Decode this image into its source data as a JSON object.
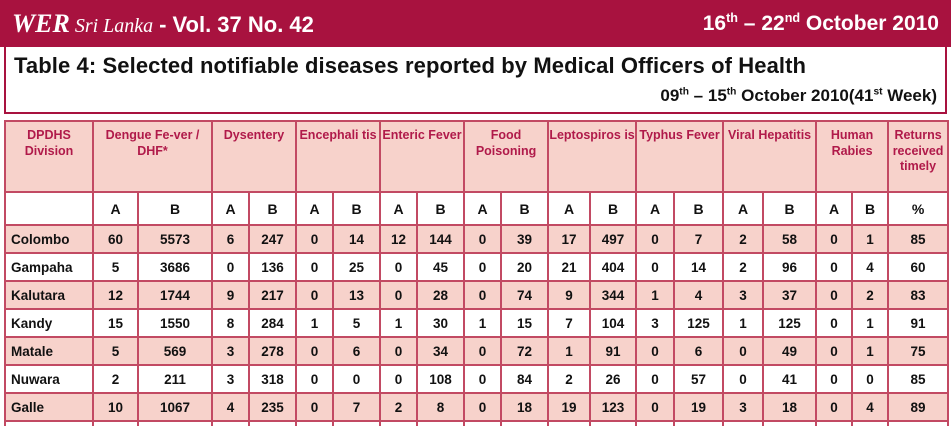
{
  "banner": {
    "wer": "WER",
    "country": "Sri Lanka",
    "separator": "-",
    "volume": "Vol. 37 No. 42",
    "date_start_day": "16",
    "date_start_sup": "th",
    "date_dash": "–",
    "date_end_day": "22",
    "date_end_sup": "nd",
    "date_month_year": "October  2010",
    "background_color": "#a8123f"
  },
  "title": {
    "text": "Table 4:  Selected notifiable diseases reported by Medical Officers of Health",
    "week_start_day": "09",
    "week_start_sup": "th",
    "week_dash": "–",
    "week_end_day": "15",
    "week_end_sup": "th",
    "week_month_year": "October  2010(41",
    "week_sup": "st",
    "week_suffix": " Week)"
  },
  "table": {
    "header_color": "#f7d2cb",
    "header_text_color": "#b01a4a",
    "border_color": "#c24a63",
    "columns": {
      "division": "DPDHS Division",
      "dengue": "Dengue Fe-ver / DHF*",
      "dysentery": "Dysentery",
      "encephalitis": "Encephali tis",
      "enteric": "Enteric Fever",
      "food": "Food Poisoning",
      "lepto": "Leptospiros is",
      "typhus": "Typhus Fever",
      "hepatitis": "Viral Hepatitis",
      "rabies": "Human Rabies",
      "returns": "Returns received timely"
    },
    "sub": {
      "a": "A",
      "b": "B",
      "pct": "%"
    },
    "rows": [
      [
        "Colombo",
        "60",
        "5573",
        "6",
        "247",
        "0",
        "14",
        "12",
        "144",
        "0",
        "39",
        "17",
        "497",
        "0",
        "7",
        "2",
        "58",
        "0",
        "1",
        "85"
      ],
      [
        "Gampaha",
        "5",
        "3686",
        "0",
        "136",
        "0",
        "25",
        "0",
        "45",
        "0",
        "20",
        "21",
        "404",
        "0",
        "14",
        "2",
        "96",
        "0",
        "4",
        "60"
      ],
      [
        "Kalutara",
        "12",
        "1744",
        "9",
        "217",
        "0",
        "13",
        "0",
        "28",
        "0",
        "74",
        "9",
        "344",
        "1",
        "4",
        "3",
        "37",
        "0",
        "2",
        "83"
      ],
      [
        "Kandy",
        "15",
        "1550",
        "8",
        "284",
        "1",
        "5",
        "1",
        "30",
        "1",
        "15",
        "7",
        "104",
        "3",
        "125",
        "1",
        "125",
        "0",
        "1",
        "91"
      ],
      [
        "Matale",
        "5",
        "569",
        "3",
        "278",
        "0",
        "6",
        "0",
        "34",
        "0",
        "72",
        "1",
        "91",
        "0",
        "6",
        "0",
        "49",
        "0",
        "1",
        "75"
      ],
      [
        "Nuwara",
        "2",
        "211",
        "3",
        "318",
        "0",
        "0",
        "0",
        "108",
        "0",
        "84",
        "2",
        "26",
        "0",
        "57",
        "0",
        "41",
        "0",
        "0",
        "85"
      ],
      [
        "Galle",
        "10",
        "1067",
        "4",
        "235",
        "0",
        "7",
        "2",
        "8",
        "0",
        "18",
        "19",
        "123",
        "0",
        "19",
        "3",
        "18",
        "0",
        "4",
        "89"
      ]
    ]
  }
}
